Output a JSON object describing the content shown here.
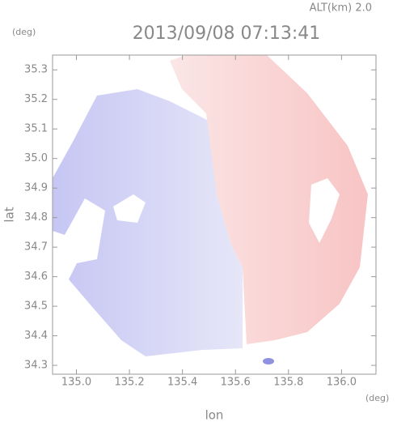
{
  "chart_data": {
    "type": "map",
    "title": "2013/09/08 07:13:41",
    "annotation": "ALT(km) 2.0",
    "xlabel": "lon",
    "ylabel": "lat",
    "x_unit": "(deg)",
    "y_unit": "(deg)",
    "xlim": [
      134.91,
      136.13
    ],
    "ylim": [
      34.27,
      35.35
    ],
    "xticks": [
      {
        "value": 135,
        "label": "135.0"
      },
      135.2,
      135.4,
      135.6,
      135.8,
      {
        "value": 136,
        "label": "136.0"
      }
    ],
    "yticks": [
      34.3,
      34.4,
      34.5,
      34.6,
      34.7,
      34.8,
      34.9,
      {
        "value": 35,
        "label": "35.0"
      },
      35.1,
      35.2,
      35.3
    ]
  }
}
